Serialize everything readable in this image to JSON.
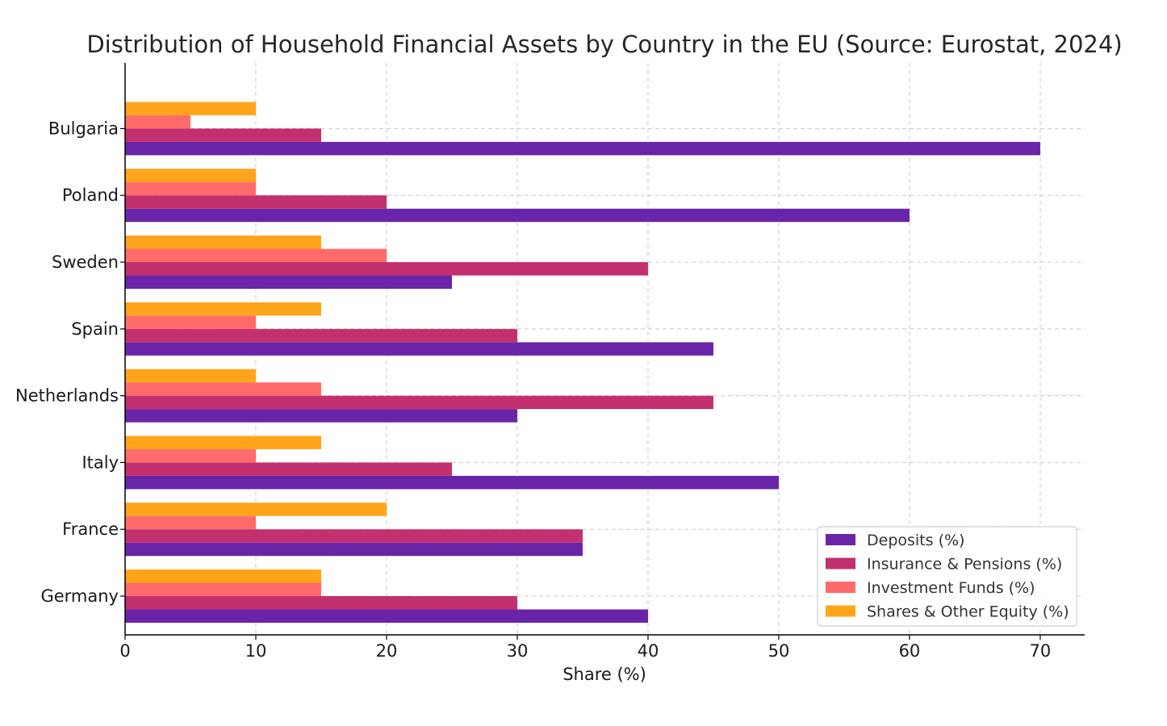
{
  "chart_data": {
    "type": "bar",
    "orientation": "horizontal",
    "title": "Distribution of Household Financial Assets by Country in the EU (Source: Eurostat, 2024)",
    "xlabel": "Share (%)",
    "ylabel": "",
    "xlim": [
      0,
      73.4
    ],
    "xticks": [
      0,
      10,
      20,
      30,
      40,
      50,
      60,
      70
    ],
    "grid": true,
    "legend_position": "bottom-right",
    "categories": [
      "Germany",
      "France",
      "Italy",
      "Netherlands",
      "Spain",
      "Sweden",
      "Poland",
      "Bulgaria"
    ],
    "series": [
      {
        "name": "Deposits (%)",
        "color": "#6a24a8",
        "values": [
          40,
          35,
          50,
          30,
          45,
          25,
          60,
          70
        ]
      },
      {
        "name": "Insurance & Pensions (%)",
        "color": "#c2306f",
        "values": [
          30,
          35,
          25,
          45,
          30,
          40,
          20,
          15
        ]
      },
      {
        "name": "Investment Funds (%)",
        "color": "#ff6b6b",
        "values": [
          15,
          10,
          10,
          15,
          10,
          20,
          10,
          5
        ]
      },
      {
        "name": "Shares & Other Equity (%)",
        "color": "#ffa41b",
        "values": [
          15,
          20,
          15,
          10,
          15,
          15,
          10,
          10
        ]
      }
    ]
  }
}
